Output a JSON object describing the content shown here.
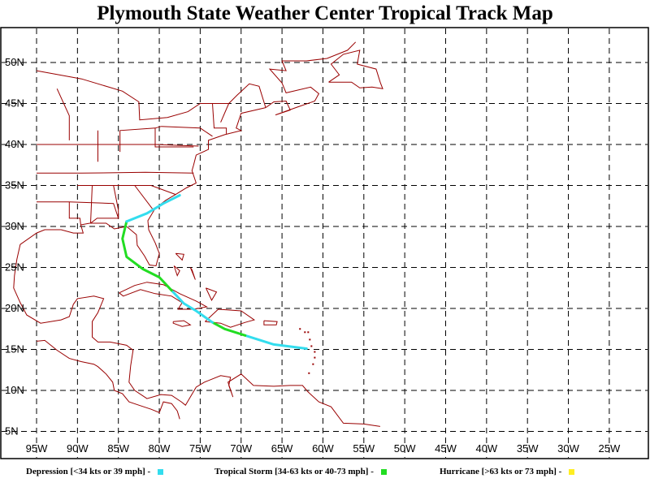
{
  "title": "Plymouth State Weather Center Tropical Track Map",
  "map": {
    "lat_labels": [
      "50N",
      "45N",
      "40N",
      "35N",
      "30N",
      "25N",
      "20N",
      "15N",
      "10N",
      "5N"
    ],
    "lon_labels": [
      "95W",
      "90W",
      "85W",
      "80W",
      "75W",
      "70W",
      "65W",
      "60W",
      "55W",
      "50W",
      "45W",
      "40W",
      "35W",
      "30W",
      "25W"
    ],
    "coast_color": "#990000",
    "grid_color": "#000000"
  },
  "track": {
    "segments": [
      {
        "category": "depression",
        "points": [
          [
            -62,
            15.1
          ],
          [
            -66,
            15.6
          ],
          [
            -69.5,
            16.7
          ]
        ]
      },
      {
        "category": "tropical_storm",
        "points": [
          [
            -69.5,
            16.7
          ],
          [
            -72,
            17.5
          ],
          [
            -73.5,
            18.3
          ]
        ]
      },
      {
        "category": "depression",
        "points": [
          [
            -73.5,
            18.3
          ],
          [
            -75.5,
            19.7
          ],
          [
            -77,
            20.6
          ],
          [
            -78.5,
            22.2
          ]
        ]
      },
      {
        "category": "tropical_storm",
        "points": [
          [
            -78.5,
            22.2
          ],
          [
            -80,
            23.8
          ],
          [
            -82,
            24.8
          ],
          [
            -84,
            26.3
          ],
          [
            -84.5,
            28.5
          ],
          [
            -84,
            30.6
          ]
        ]
      },
      {
        "category": "depression",
        "points": [
          [
            -84,
            30.6
          ],
          [
            -81.5,
            31.6
          ],
          [
            -79.5,
            32.8
          ],
          [
            -77.5,
            33.8
          ]
        ]
      }
    ]
  },
  "legend": [
    {
      "key": "depression",
      "label": "Depression [<34 kts or 39 mph] -",
      "color": "#33ddee"
    },
    {
      "key": "tropical_storm",
      "label": "Tropical Storm [34-63 kts or 40-73 mph] -",
      "color": "#22dd22"
    },
    {
      "key": "hurricane",
      "label": "Hurricane [>63 kts or 73 mph] -",
      "color": "#ffee22"
    }
  ]
}
